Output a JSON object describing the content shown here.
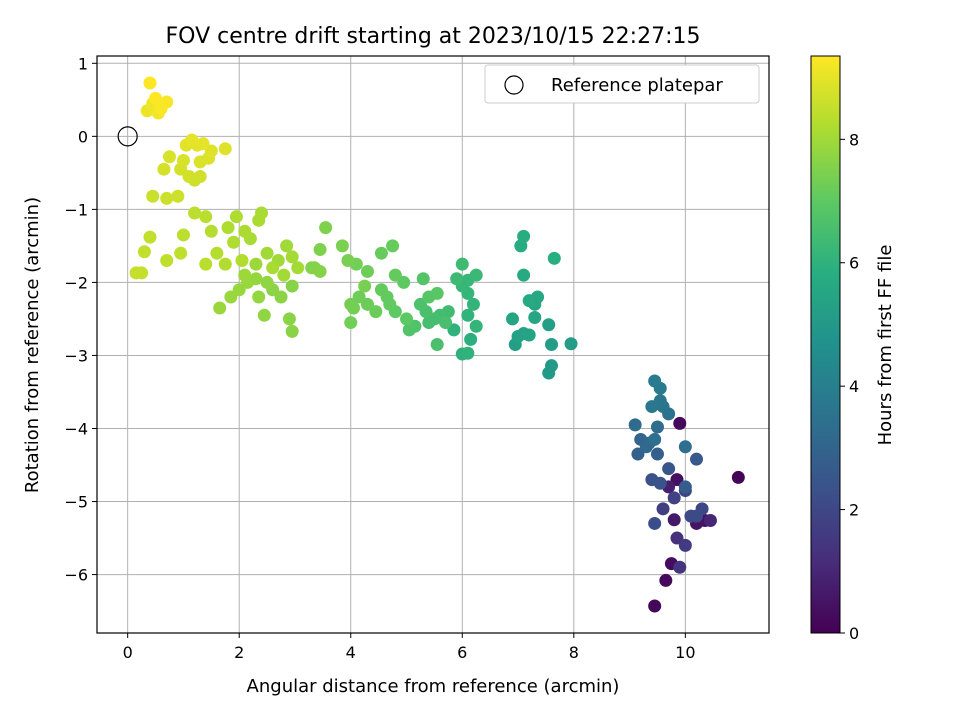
{
  "chart_data": {
    "type": "scatter",
    "title": "FOV centre drift starting at 2023/10/15 22:27:15",
    "xlabel": "Angular distance from reference (arcmin)",
    "ylabel": "Rotation from reference (arcmin)",
    "xlim": [
      -0.55,
      11.5
    ],
    "ylim": [
      -6.8,
      1.1
    ],
    "xticks": [
      0,
      2,
      4,
      6,
      8,
      10
    ],
    "yticks": [
      -6,
      -5,
      -4,
      -3,
      -2,
      -1,
      0,
      1
    ],
    "grid": true,
    "legend": {
      "position": "upper right",
      "entries": [
        "Reference platepar"
      ]
    },
    "reference_point": {
      "x": 0,
      "y": 0,
      "label": "Reference platepar",
      "marker": "open-circle"
    },
    "colorbar": {
      "label": "Hours from first FF file",
      "range": [
        0,
        9.35
      ],
      "ticks": [
        0,
        2,
        4,
        6,
        8
      ],
      "colormap": "viridis"
    },
    "series": [
      {
        "color_by": "hours",
        "points": [
          [
            9.9,
            -3.93,
            0.2
          ],
          [
            10.95,
            -4.67,
            0.1
          ],
          [
            9.45,
            -6.43,
            0.15
          ],
          [
            9.75,
            -5.85,
            0.3
          ],
          [
            9.65,
            -6.08,
            0.25
          ],
          [
            9.85,
            -4.7,
            0.4
          ],
          [
            10.35,
            -5.26,
            0.45
          ],
          [
            9.8,
            -5.25,
            0.6
          ],
          [
            10.2,
            -5.3,
            0.5
          ],
          [
            9.7,
            -4.8,
            0.8
          ],
          [
            10.45,
            -5.26,
            1.0
          ],
          [
            9.85,
            -5.5,
            1.3
          ],
          [
            9.9,
            -5.9,
            1.4
          ],
          [
            10.0,
            -5.6,
            1.6
          ],
          [
            9.6,
            -5.1,
            1.7
          ],
          [
            9.8,
            -4.95,
            1.8
          ],
          [
            10.0,
            -4.85,
            1.9
          ],
          [
            10.3,
            -5.1,
            2.0
          ],
          [
            10.1,
            -5.2,
            2.05
          ],
          [
            10.2,
            -5.2,
            2.1
          ],
          [
            9.45,
            -5.3,
            2.2
          ],
          [
            9.4,
            -4.7,
            2.3
          ],
          [
            9.55,
            -4.75,
            2.4
          ],
          [
            9.7,
            -4.55,
            2.5
          ],
          [
            10.2,
            -4.42,
            2.6
          ],
          [
            10.0,
            -4.8,
            2.7
          ],
          [
            9.5,
            -4.35,
            2.8
          ],
          [
            9.15,
            -4.35,
            2.9
          ],
          [
            9.2,
            -4.15,
            3.0
          ],
          [
            9.35,
            -4.2,
            3.1
          ],
          [
            9.3,
            -4.25,
            3.15
          ],
          [
            9.1,
            -3.95,
            3.2
          ],
          [
            9.5,
            -3.98,
            3.3
          ],
          [
            10.0,
            -4.25,
            3.35
          ],
          [
            9.45,
            -4.15,
            3.4
          ],
          [
            9.7,
            -3.8,
            3.5
          ],
          [
            9.6,
            -3.7,
            3.6
          ],
          [
            9.55,
            -3.62,
            3.65
          ],
          [
            9.4,
            -3.7,
            3.7
          ],
          [
            9.55,
            -3.45,
            3.8
          ],
          [
            9.45,
            -3.35,
            3.9
          ],
          [
            7.55,
            -3.24,
            5.0
          ],
          [
            7.6,
            -3.14,
            5.05
          ],
          [
            7.95,
            -2.84,
            5.1
          ],
          [
            7.6,
            -2.85,
            5.15
          ],
          [
            7.55,
            -2.58,
            5.2
          ],
          [
            6.95,
            -2.85,
            5.25
          ],
          [
            7.0,
            -2.74,
            5.3
          ],
          [
            7.1,
            -2.7,
            5.35
          ],
          [
            7.2,
            -2.72,
            5.4
          ],
          [
            7.3,
            -2.48,
            5.45
          ],
          [
            6.9,
            -2.5,
            5.5
          ],
          [
            7.3,
            -2.3,
            5.55
          ],
          [
            7.35,
            -2.2,
            5.6
          ],
          [
            7.2,
            -2.25,
            5.65
          ],
          [
            7.1,
            -1.9,
            5.7
          ],
          [
            7.05,
            -1.5,
            5.75
          ],
          [
            7.1,
            -1.37,
            5.8
          ],
          [
            7.65,
            -1.67,
            5.85
          ],
          [
            6.15,
            -2.78,
            5.9
          ],
          [
            6.0,
            -2.98,
            5.95
          ],
          [
            6.1,
            -2.97,
            6.0
          ],
          [
            5.85,
            -2.65,
            6.0
          ],
          [
            6.1,
            -2.45,
            6.05
          ],
          [
            6.25,
            -2.6,
            6.1
          ],
          [
            6.2,
            -2.3,
            6.1
          ],
          [
            6.1,
            -2.15,
            6.15
          ],
          [
            6.0,
            -2.05,
            6.2
          ],
          [
            6.1,
            -1.97,
            6.2
          ],
          [
            6.25,
            -1.9,
            6.25
          ],
          [
            5.9,
            -1.95,
            6.3
          ],
          [
            6.0,
            -1.75,
            6.35
          ],
          [
            5.75,
            -2.4,
            6.4
          ],
          [
            5.6,
            -2.45,
            6.45
          ],
          [
            5.5,
            -2.5,
            6.5
          ],
          [
            5.4,
            -2.55,
            6.5
          ],
          [
            5.7,
            -2.55,
            6.55
          ],
          [
            5.55,
            -2.85,
            6.6
          ],
          [
            5.35,
            -2.4,
            6.6
          ],
          [
            5.25,
            -2.3,
            6.65
          ],
          [
            5.15,
            -2.6,
            6.7
          ],
          [
            5.05,
            -2.65,
            6.75
          ],
          [
            5.3,
            -1.95,
            6.8
          ],
          [
            5.4,
            -2.2,
            6.85
          ],
          [
            5.55,
            -2.15,
            6.9
          ],
          [
            5.0,
            -2.5,
            6.95
          ],
          [
            4.95,
            -2.0,
            7.0
          ],
          [
            4.8,
            -2.4,
            7.0
          ],
          [
            4.65,
            -2.2,
            7.05
          ],
          [
            4.7,
            -2.3,
            7.05
          ],
          [
            4.55,
            -2.1,
            7.1
          ],
          [
            4.8,
            -1.9,
            7.1
          ],
          [
            4.75,
            -1.5,
            7.15
          ],
          [
            4.55,
            -1.6,
            7.15
          ],
          [
            4.45,
            -2.4,
            7.2
          ],
          [
            4.3,
            -2.3,
            7.2
          ],
          [
            4.15,
            -2.2,
            7.25
          ],
          [
            4.3,
            -1.85,
            7.25
          ],
          [
            4.1,
            -1.75,
            7.3
          ],
          [
            4.0,
            -2.55,
            7.3
          ],
          [
            4.05,
            -2.35,
            7.35
          ],
          [
            4.0,
            -2.3,
            7.35
          ],
          [
            4.25,
            -2.05,
            7.4
          ],
          [
            3.95,
            -1.7,
            7.4
          ],
          [
            3.85,
            -1.5,
            7.45
          ],
          [
            3.55,
            -1.25,
            7.5
          ],
          [
            3.45,
            -1.55,
            7.5
          ],
          [
            3.35,
            -1.8,
            7.55
          ],
          [
            3.3,
            -1.8,
            7.55
          ],
          [
            3.45,
            -1.85,
            7.6
          ],
          [
            2.95,
            -2.05,
            7.6
          ],
          [
            2.9,
            -2.5,
            7.65
          ],
          [
            2.95,
            -2.67,
            7.65
          ],
          [
            2.75,
            -2.2,
            7.7
          ],
          [
            2.6,
            -2.1,
            7.7
          ],
          [
            2.5,
            -2.0,
            7.75
          ],
          [
            2.45,
            -2.45,
            7.75
          ],
          [
            2.35,
            -2.2,
            7.8
          ],
          [
            2.3,
            -1.95,
            7.8
          ],
          [
            2.15,
            -2.0,
            7.85
          ],
          [
            2.0,
            -2.1,
            7.85
          ],
          [
            1.85,
            -2.2,
            7.9
          ],
          [
            1.65,
            -2.35,
            7.9
          ],
          [
            2.1,
            -1.9,
            7.95
          ],
          [
            2.3,
            -1.75,
            7.95
          ],
          [
            2.5,
            -1.6,
            8.0
          ],
          [
            2.7,
            -1.7,
            8.0
          ],
          [
            2.85,
            -1.5,
            8.0
          ],
          [
            2.95,
            -1.65,
            8.05
          ],
          [
            3.05,
            -1.8,
            8.05
          ],
          [
            2.8,
            -1.9,
            8.05
          ],
          [
            2.6,
            -1.8,
            8.1
          ],
          [
            2.2,
            -1.4,
            8.1
          ],
          [
            2.4,
            -1.05,
            8.1
          ],
          [
            2.35,
            -1.15,
            8.15
          ],
          [
            2.1,
            -1.3,
            8.15
          ],
          [
            1.95,
            -1.1,
            8.2
          ],
          [
            1.8,
            -1.25,
            8.2
          ],
          [
            1.9,
            -1.45,
            8.2
          ],
          [
            2.05,
            -1.7,
            8.25
          ],
          [
            1.75,
            -1.75,
            8.25
          ],
          [
            1.6,
            -1.6,
            8.3
          ],
          [
            1.5,
            -1.3,
            8.3
          ],
          [
            1.4,
            -1.1,
            8.35
          ],
          [
            1.4,
            -1.75,
            8.35
          ],
          [
            1.2,
            -1.05,
            8.4
          ],
          [
            1.0,
            -1.35,
            8.4
          ],
          [
            0.95,
            -1.6,
            8.45
          ],
          [
            0.7,
            -1.7,
            8.45
          ],
          [
            0.4,
            -1.38,
            8.5
          ],
          [
            0.3,
            -1.58,
            8.5
          ],
          [
            0.25,
            -1.87,
            8.55
          ],
          [
            0.15,
            -1.87,
            8.55
          ],
          [
            0.45,
            -0.82,
            8.6
          ],
          [
            0.7,
            -0.85,
            8.6
          ],
          [
            0.9,
            -0.82,
            8.65
          ],
          [
            1.2,
            -0.6,
            8.65
          ],
          [
            1.3,
            -0.55,
            8.7
          ],
          [
            1.1,
            -0.55,
            8.7
          ],
          [
            0.95,
            -0.45,
            8.75
          ],
          [
            0.65,
            -0.45,
            8.75
          ],
          [
            0.75,
            -0.28,
            8.8
          ],
          [
            1.0,
            -0.33,
            8.8
          ],
          [
            1.3,
            -0.35,
            8.85
          ],
          [
            1.45,
            -0.3,
            8.85
          ],
          [
            1.75,
            -0.17,
            8.9
          ],
          [
            1.5,
            -0.2,
            8.9
          ],
          [
            1.25,
            -0.12,
            8.95
          ],
          [
            1.05,
            -0.12,
            8.95
          ],
          [
            1.15,
            -0.05,
            9.0
          ],
          [
            1.35,
            -0.1,
            9.0
          ],
          [
            0.35,
            0.35,
            9.1
          ],
          [
            0.45,
            0.45,
            9.15
          ],
          [
            0.55,
            0.32,
            9.2
          ],
          [
            0.7,
            0.47,
            9.25
          ],
          [
            0.6,
            0.38,
            9.3
          ],
          [
            0.4,
            0.73,
            9.35
          ],
          [
            0.5,
            0.52,
            9.35
          ]
        ]
      }
    ]
  }
}
